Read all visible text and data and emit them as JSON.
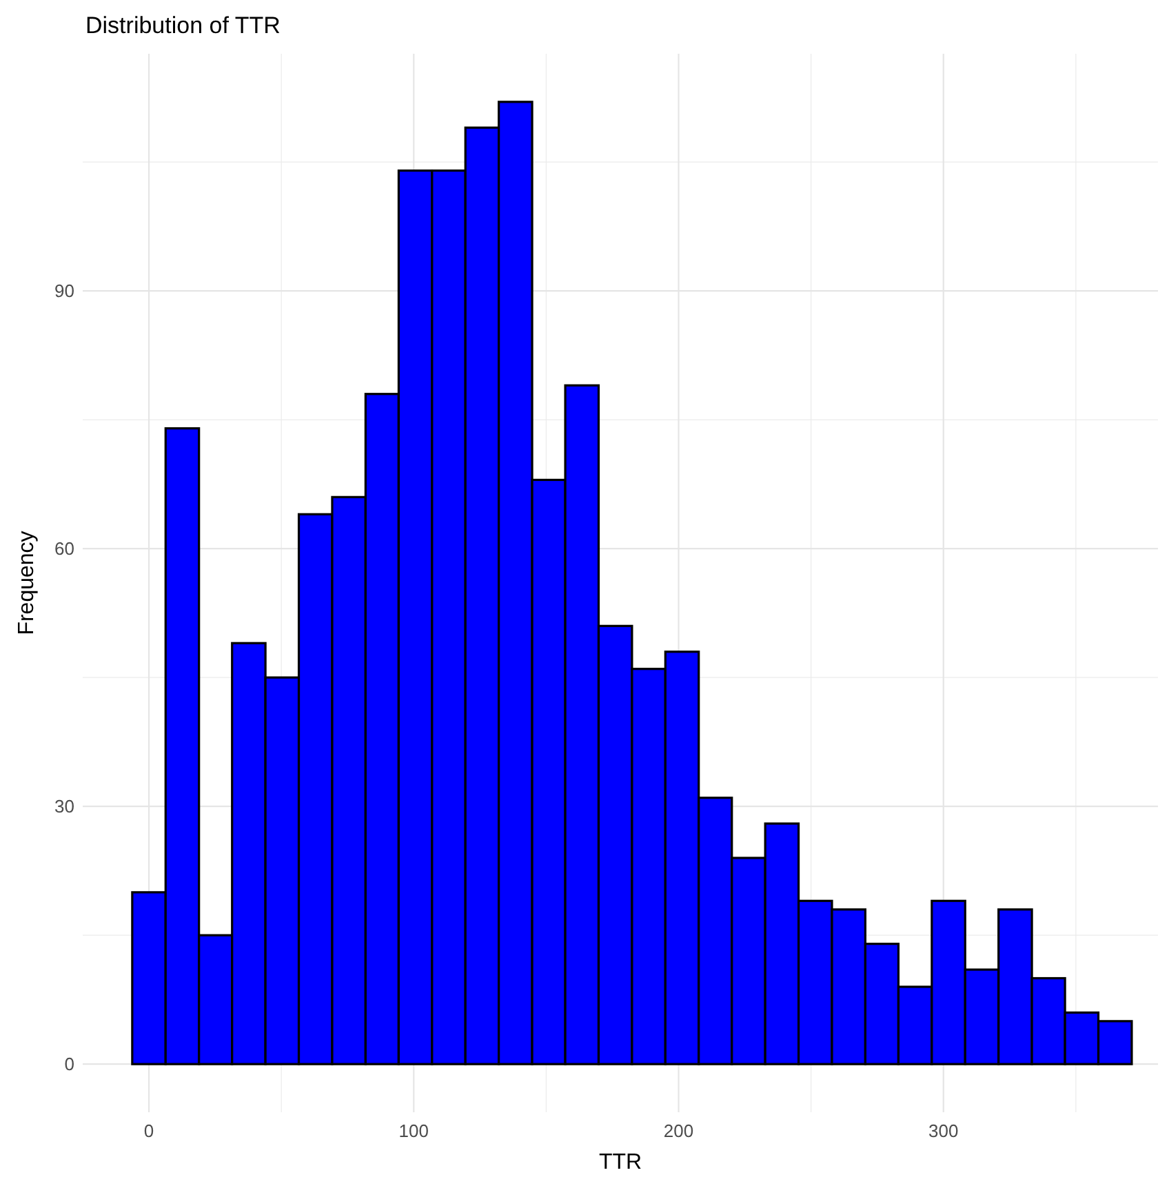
{
  "chart_data": {
    "type": "histogram",
    "title": "Distribution of TTR",
    "xlabel": "TTR",
    "ylabel": "Frequency",
    "bins": [
      -6.3,
      6.3,
      18.9,
      31.4,
      44.0,
      56.6,
      69.2,
      81.8,
      94.3,
      106.9,
      119.5,
      132.1,
      144.7,
      157.2,
      169.8,
      182.4,
      195.0,
      207.6,
      220.1,
      232.7,
      245.3,
      257.9,
      270.5,
      283.0,
      295.6,
      308.2,
      320.8,
      333.4,
      345.9,
      358.5,
      371.1
    ],
    "values": [
      20,
      74,
      15,
      49,
      45,
      64,
      66,
      78,
      104,
      104,
      109,
      112,
      68,
      79,
      51,
      46,
      48,
      31,
      24,
      28,
      19,
      18,
      14,
      9,
      19,
      11,
      18,
      10,
      6,
      5
    ],
    "color": "#0000ff",
    "xlim": [
      -25,
      381
    ],
    "ylim": [
      -5.6,
      117.6
    ],
    "xticks": [
      0,
      100,
      200,
      300
    ],
    "yticks": [
      0,
      30,
      60,
      90
    ],
    "grid": true
  }
}
